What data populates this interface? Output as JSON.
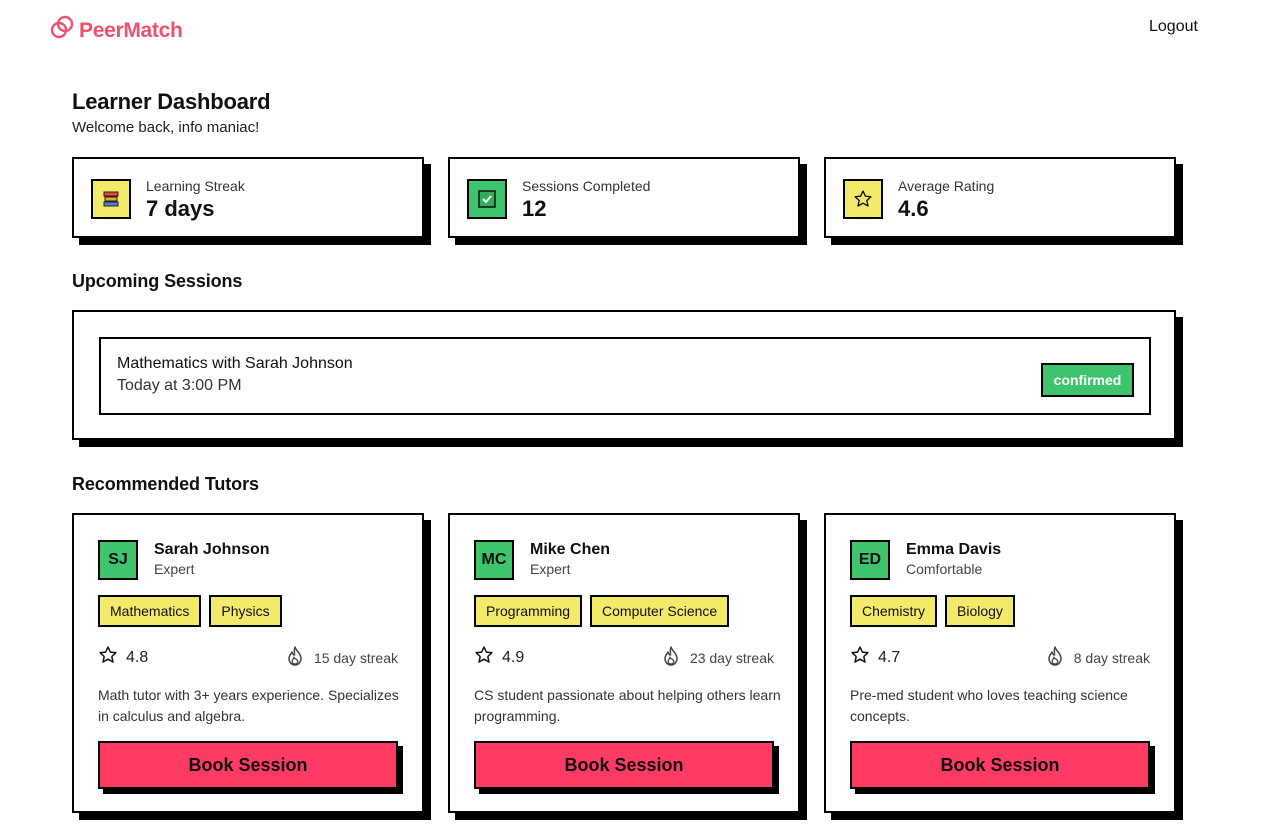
{
  "brand": {
    "name": "PeerMatch",
    "accent": "#f0506e"
  },
  "nav": {
    "logout": "Logout"
  },
  "header": {
    "title": "Learner Dashboard",
    "welcome": "Welcome back, info maniac!"
  },
  "stats": [
    {
      "label": "Learning Streak",
      "value": "7 days",
      "icon": "books-icon",
      "icon_bg": "#f3ea6c"
    },
    {
      "label": "Sessions Completed",
      "value": "12",
      "icon": "checkbox-icon",
      "icon_bg": "#3ec46d"
    },
    {
      "label": "Average Rating",
      "value": "4.6",
      "icon": "star-icon",
      "icon_bg": "#f3ea6c"
    }
  ],
  "upcoming": {
    "title": "Upcoming Sessions",
    "sessions": [
      {
        "title": "Mathematics with Sarah Johnson",
        "time": "Today at 3:00 PM",
        "status": "confirmed",
        "status_color": "#3ec46d"
      }
    ]
  },
  "recommended": {
    "title": "Recommended Tutors",
    "button_color": "#ff3b63",
    "tutors": [
      {
        "initials": "SJ",
        "name": "Sarah Johnson",
        "level": "Expert",
        "subjects": [
          "Mathematics",
          "Physics"
        ],
        "rating": "4.8",
        "streak": "15 day streak",
        "bio": "Math tutor with 3+ years experience. Specializes in calculus and algebra.",
        "cta": "Book Session"
      },
      {
        "initials": "MC",
        "name": "Mike Chen",
        "level": "Expert",
        "subjects": [
          "Programming",
          "Computer Science"
        ],
        "rating": "4.9",
        "streak": "23 day streak",
        "bio": "CS student passionate about helping others learn programming.",
        "cta": "Book Session"
      },
      {
        "initials": "ED",
        "name": "Emma Davis",
        "level": "Comfortable",
        "subjects": [
          "Chemistry",
          "Biology"
        ],
        "rating": "4.7",
        "streak": "8 day streak",
        "bio": "Pre-med student who loves teaching science concepts.",
        "cta": "Book Session"
      }
    ]
  }
}
